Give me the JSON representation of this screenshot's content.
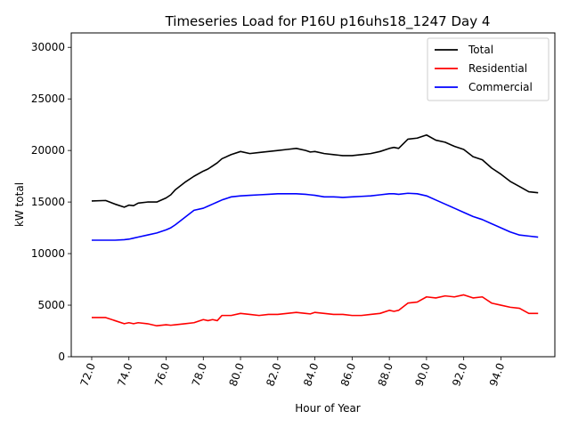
{
  "chart_data": {
    "type": "line",
    "title": "Timeseries Load for P16U p16uhs18_1247  Day 4",
    "xlabel": "Hour of Year",
    "ylabel": "kW total",
    "xlim": [
      70.9,
      96.9
    ],
    "ylim": [
      0,
      31400
    ],
    "x_ticks": [
      72,
      74,
      76,
      78,
      80,
      82,
      84,
      86,
      88,
      90,
      92,
      94
    ],
    "x_tick_labels": [
      "72.0",
      "74.0",
      "76.0",
      "78.0",
      "80.0",
      "82.0",
      "84.0",
      "86.0",
      "88.0",
      "90.0",
      "92.0",
      "94.0"
    ],
    "y_ticks": [
      0,
      5000,
      10000,
      15000,
      20000,
      25000,
      30000
    ],
    "y_tick_labels": [
      "0",
      "5000",
      "10000",
      "15000",
      "20000",
      "25000",
      "30000"
    ],
    "legend_position": "top-right",
    "series": [
      {
        "name": "Total",
        "color": "#000000",
        "x": [
          72.0,
          72.75,
          73.25,
          73.75,
          74.0,
          74.25,
          74.5,
          75.0,
          75.5,
          76.0,
          76.25,
          76.5,
          77.0,
          77.5,
          78.0,
          78.25,
          78.5,
          78.75,
          79.0,
          79.5,
          80.0,
          80.5,
          81.0,
          81.5,
          82.0,
          82.5,
          83.0,
          83.5,
          83.75,
          84.0,
          84.5,
          85.0,
          85.5,
          86.0,
          86.5,
          87.0,
          87.5,
          88.0,
          88.25,
          88.5,
          89.0,
          89.5,
          90.0,
          90.5,
          91.0,
          91.5,
          92.0,
          92.5,
          93.0,
          93.5,
          94.0,
          94.5,
          95.0,
          95.5,
          96.0
        ],
        "values": [
          15100,
          15150,
          14800,
          14500,
          14700,
          14650,
          14900,
          15000,
          15000,
          15400,
          15700,
          16200,
          16900,
          17500,
          18000,
          18200,
          18500,
          18800,
          19200,
          19600,
          19900,
          19700,
          19800,
          19900,
          20000,
          20100,
          20200,
          20000,
          19850,
          19900,
          19700,
          19600,
          19500,
          19500,
          19600,
          19700,
          19900,
          20200,
          20300,
          20200,
          21100,
          21200,
          21500,
          21000,
          20800,
          20400,
          20100,
          19400,
          19100,
          18300,
          17700,
          17000,
          16500,
          16000,
          15900
        ]
      },
      {
        "name": "Residential",
        "color": "#ff0000",
        "x": [
          72.0,
          72.75,
          73.25,
          73.75,
          74.0,
          74.25,
          74.5,
          75.0,
          75.5,
          76.0,
          76.25,
          76.5,
          77.0,
          77.5,
          78.0,
          78.25,
          78.5,
          78.75,
          79.0,
          79.5,
          80.0,
          80.5,
          81.0,
          81.5,
          82.0,
          82.5,
          83.0,
          83.5,
          83.75,
          84.0,
          84.5,
          85.0,
          85.5,
          86.0,
          86.5,
          87.0,
          87.5,
          88.0,
          88.25,
          88.5,
          89.0,
          89.5,
          90.0,
          90.5,
          91.0,
          91.5,
          92.0,
          92.5,
          93.0,
          93.5,
          94.0,
          94.5,
          95.0,
          95.5,
          96.0
        ],
        "values": [
          3800,
          3800,
          3500,
          3200,
          3300,
          3200,
          3300,
          3200,
          3000,
          3100,
          3050,
          3100,
          3200,
          3300,
          3600,
          3500,
          3600,
          3500,
          4000,
          4000,
          4200,
          4100,
          4000,
          4100,
          4100,
          4200,
          4300,
          4200,
          4150,
          4300,
          4200,
          4100,
          4100,
          4000,
          4000,
          4100,
          4200,
          4500,
          4400,
          4500,
          5200,
          5300,
          5800,
          5700,
          5900,
          5800,
          6000,
          5700,
          5800,
          5200,
          5000,
          4800,
          4700,
          4200,
          4200
        ]
      },
      {
        "name": "Commercial",
        "color": "#0000ff",
        "x": [
          72.0,
          72.75,
          73.25,
          73.75,
          74.0,
          74.25,
          74.5,
          75.0,
          75.5,
          76.0,
          76.25,
          76.5,
          77.0,
          77.5,
          78.0,
          78.25,
          78.5,
          78.75,
          79.0,
          79.5,
          80.0,
          80.5,
          81.0,
          81.5,
          82.0,
          82.5,
          83.0,
          83.5,
          83.75,
          84.0,
          84.5,
          85.0,
          85.5,
          86.0,
          86.5,
          87.0,
          87.5,
          88.0,
          88.25,
          88.5,
          89.0,
          89.5,
          90.0,
          90.5,
          91.0,
          91.5,
          92.0,
          92.5,
          93.0,
          93.5,
          94.0,
          94.5,
          95.0,
          95.5,
          96.0
        ],
        "values": [
          11300,
          11300,
          11300,
          11350,
          11400,
          11500,
          11600,
          11800,
          12000,
          12300,
          12500,
          12800,
          13500,
          14200,
          14400,
          14600,
          14800,
          15000,
          15200,
          15500,
          15600,
          15650,
          15700,
          15750,
          15800,
          15800,
          15800,
          15750,
          15700,
          15650,
          15500,
          15500,
          15450,
          15500,
          15550,
          15600,
          15700,
          15800,
          15800,
          15750,
          15850,
          15800,
          15600,
          15200,
          14800,
          14400,
          14000,
          13600,
          13300,
          12900,
          12500,
          12100,
          11800,
          11700,
          11600
        ]
      }
    ]
  }
}
